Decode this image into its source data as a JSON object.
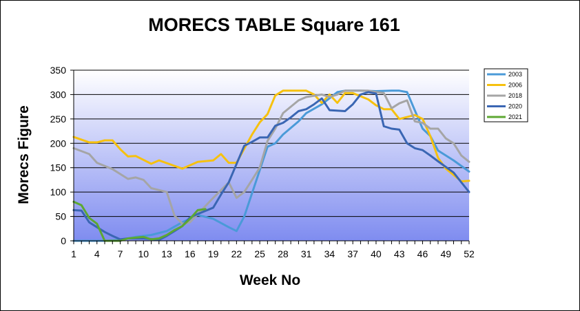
{
  "chart_data": {
    "type": "line",
    "title": "MORECS TABLE Square 161",
    "xlabel": "Week No",
    "ylabel": "Morecs Figure",
    "xlim": [
      1,
      52
    ],
    "ylim": [
      0,
      350
    ],
    "yticks": [
      0,
      50,
      100,
      150,
      200,
      250,
      300,
      350
    ],
    "xticks": [
      1,
      4,
      7,
      10,
      13,
      16,
      19,
      22,
      25,
      28,
      31,
      34,
      37,
      40,
      43,
      46,
      49,
      52
    ],
    "grid": true,
    "legend_position": "right",
    "plot_background": [
      "#ffffff",
      "#7f8cf0"
    ],
    "series": [
      {
        "name": "2003",
        "color": "#4a9ad8",
        "points": [
          [
            1,
            0
          ],
          [
            3,
            0
          ],
          [
            5,
            0
          ],
          [
            7,
            2
          ],
          [
            9,
            8
          ],
          [
            11,
            12
          ],
          [
            13,
            20
          ],
          [
            15,
            38
          ],
          [
            17,
            53
          ],
          [
            19,
            45
          ],
          [
            21,
            28
          ],
          [
            22,
            20
          ],
          [
            23,
            50
          ],
          [
            25,
            145
          ],
          [
            26,
            193
          ],
          [
            27,
            200
          ],
          [
            28,
            218
          ],
          [
            30,
            245
          ],
          [
            31,
            262
          ],
          [
            33,
            280
          ],
          [
            35,
            305
          ],
          [
            36,
            308
          ],
          [
            38,
            308
          ],
          [
            40,
            307
          ],
          [
            42,
            308
          ],
          [
            43,
            308
          ],
          [
            44,
            305
          ],
          [
            46,
            230
          ],
          [
            47,
            215
          ],
          [
            48,
            185
          ],
          [
            50,
            165
          ],
          [
            52,
            142
          ]
        ]
      },
      {
        "name": "2006",
        "color": "#f6c10e",
        "points": [
          [
            1,
            213
          ],
          [
            3,
            202
          ],
          [
            4,
            202
          ],
          [
            5,
            206
          ],
          [
            6,
            206
          ],
          [
            7,
            188
          ],
          [
            8,
            173
          ],
          [
            9,
            174
          ],
          [
            11,
            158
          ],
          [
            12,
            165
          ],
          [
            15,
            148
          ],
          [
            17,
            162
          ],
          [
            19,
            165
          ],
          [
            20,
            178
          ],
          [
            21,
            160
          ],
          [
            22,
            160
          ],
          [
            24,
            218
          ],
          [
            25,
            243
          ],
          [
            26,
            260
          ],
          [
            27,
            298
          ],
          [
            28,
            308
          ],
          [
            31,
            308
          ],
          [
            32,
            300
          ],
          [
            33,
            283
          ],
          [
            34,
            300
          ],
          [
            35,
            283
          ],
          [
            36,
            303
          ],
          [
            37,
            303
          ],
          [
            39,
            290
          ],
          [
            40,
            278
          ],
          [
            41,
            270
          ],
          [
            42,
            270
          ],
          [
            43,
            250
          ],
          [
            45,
            258
          ],
          [
            46,
            250
          ],
          [
            47,
            215
          ],
          [
            48,
            170
          ],
          [
            49,
            148
          ],
          [
            50,
            135
          ],
          [
            51,
            122
          ],
          [
            52,
            123
          ]
        ]
      },
      {
        "name": "2018",
        "color": "#a5a5a5",
        "points": [
          [
            1,
            190
          ],
          [
            3,
            178
          ],
          [
            4,
            160
          ],
          [
            6,
            147
          ],
          [
            7,
            137
          ],
          [
            8,
            127
          ],
          [
            9,
            130
          ],
          [
            10,
            125
          ],
          [
            11,
            108
          ],
          [
            13,
            100
          ],
          [
            14,
            52
          ],
          [
            15,
            35
          ],
          [
            16,
            38
          ],
          [
            17,
            55
          ],
          [
            19,
            88
          ],
          [
            21,
            120
          ],
          [
            22,
            88
          ],
          [
            23,
            100
          ],
          [
            24,
            125
          ],
          [
            25,
            150
          ],
          [
            26,
            205
          ],
          [
            27,
            230
          ],
          [
            28,
            262
          ],
          [
            30,
            288
          ],
          [
            31,
            295
          ],
          [
            33,
            300
          ],
          [
            34,
            295
          ],
          [
            35,
            300
          ],
          [
            36,
            308
          ],
          [
            39,
            308
          ],
          [
            40,
            305
          ],
          [
            41,
            303
          ],
          [
            42,
            272
          ],
          [
            43,
            282
          ],
          [
            44,
            288
          ],
          [
            45,
            245
          ],
          [
            46,
            242
          ],
          [
            47,
            230
          ],
          [
            48,
            230
          ],
          [
            49,
            210
          ],
          [
            50,
            200
          ],
          [
            51,
            175
          ],
          [
            52,
            162
          ]
        ]
      },
      {
        "name": "2020",
        "color": "#3a66b3",
        "points": [
          [
            1,
            63
          ],
          [
            2,
            62
          ],
          [
            3,
            38
          ],
          [
            4,
            28
          ],
          [
            5,
            18
          ],
          [
            6,
            10
          ],
          [
            7,
            3
          ],
          [
            8,
            5
          ],
          [
            10,
            5
          ],
          [
            12,
            2
          ],
          [
            13,
            10
          ],
          [
            14,
            20
          ],
          [
            15,
            30
          ],
          [
            16,
            48
          ],
          [
            17,
            55
          ],
          [
            19,
            68
          ],
          [
            20,
            95
          ],
          [
            21,
            120
          ],
          [
            23,
            195
          ],
          [
            24,
            203
          ],
          [
            25,
            212
          ],
          [
            26,
            212
          ],
          [
            27,
            236
          ],
          [
            28,
            242
          ],
          [
            29,
            253
          ],
          [
            30,
            266
          ],
          [
            31,
            270
          ],
          [
            32,
            280
          ],
          [
            33,
            292
          ],
          [
            34,
            268
          ],
          [
            36,
            266
          ],
          [
            37,
            280
          ],
          [
            38,
            300
          ],
          [
            39,
            305
          ],
          [
            40,
            302
          ],
          [
            41,
            235
          ],
          [
            42,
            230
          ],
          [
            43,
            228
          ],
          [
            44,
            200
          ],
          [
            45,
            190
          ],
          [
            46,
            186
          ],
          [
            47,
            175
          ],
          [
            48,
            163
          ],
          [
            50,
            140
          ],
          [
            51,
            120
          ],
          [
            52,
            100
          ]
        ]
      },
      {
        "name": "2021",
        "color": "#5da832",
        "points": [
          [
            1,
            80
          ],
          [
            2,
            73
          ],
          [
            3,
            47
          ],
          [
            4,
            35
          ],
          [
            5,
            0
          ],
          [
            6,
            0
          ],
          [
            7,
            0
          ],
          [
            8,
            5
          ],
          [
            10,
            8
          ],
          [
            11,
            3
          ],
          [
            12,
            5
          ],
          [
            13,
            12
          ],
          [
            14,
            22
          ],
          [
            15,
            30
          ],
          [
            16,
            45
          ],
          [
            17,
            63
          ],
          [
            18,
            65
          ]
        ]
      }
    ]
  }
}
